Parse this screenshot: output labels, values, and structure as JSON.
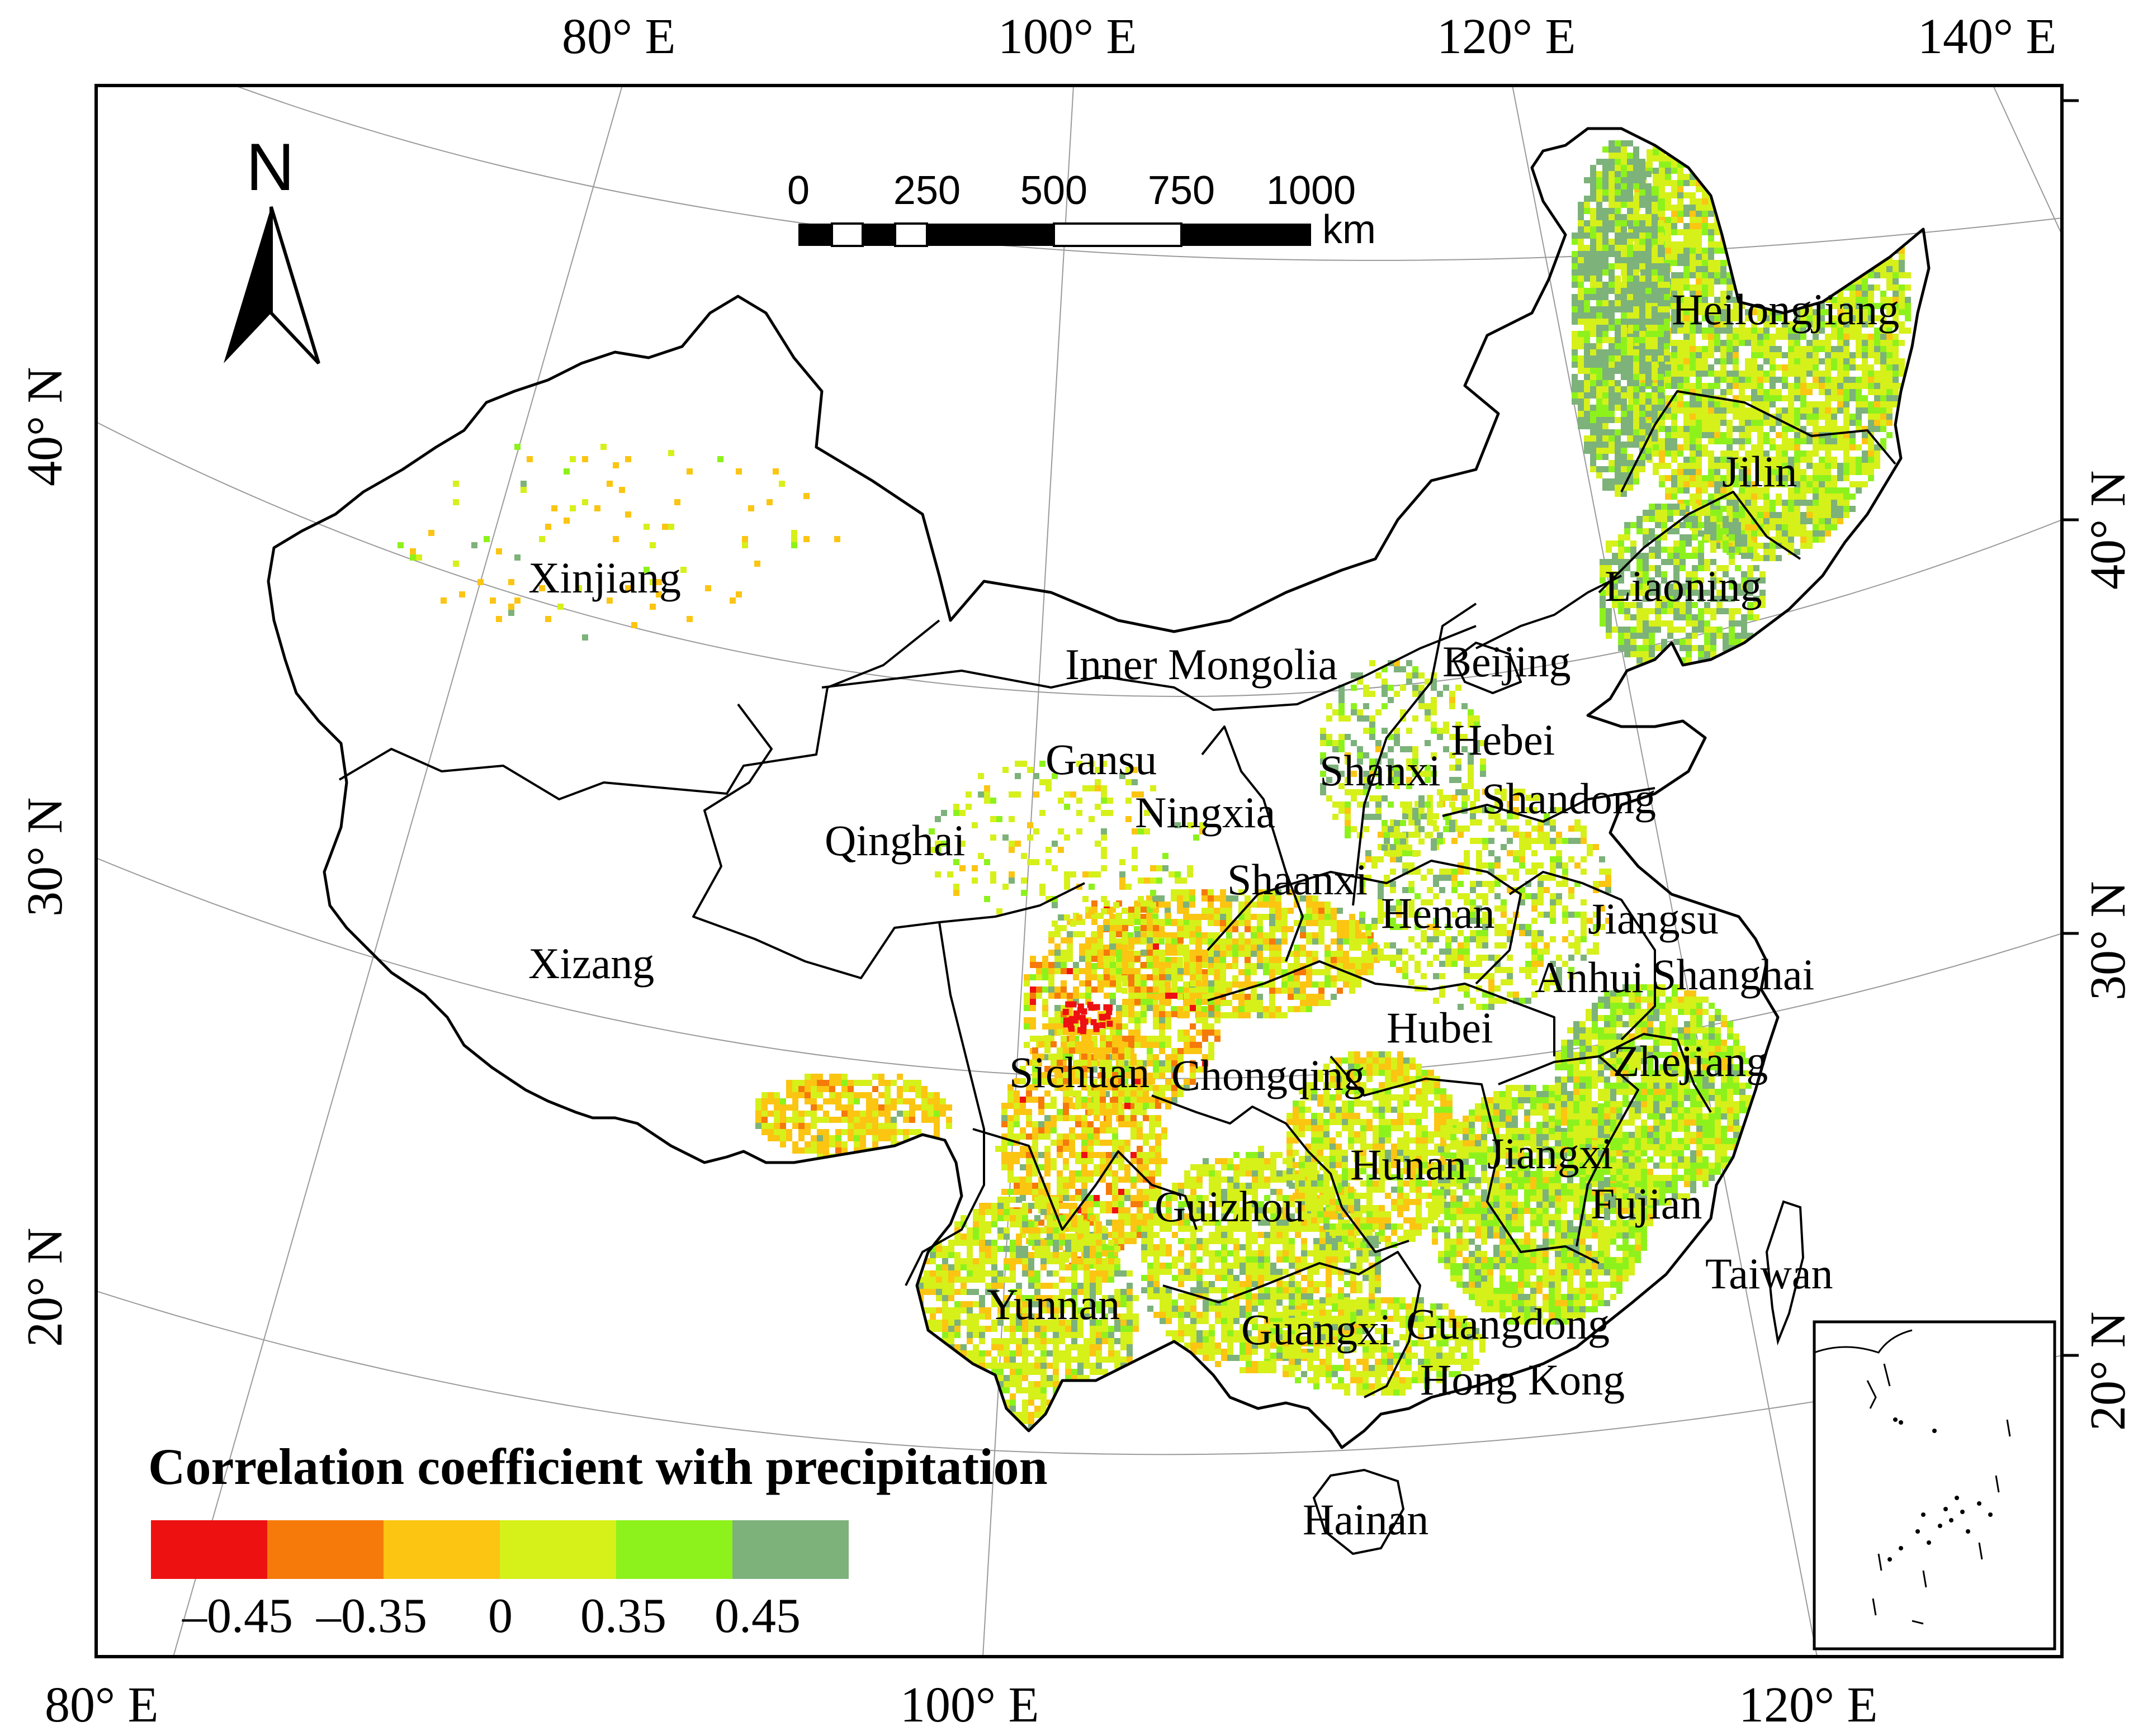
{
  "top_longitude_labels": [
    "80° E",
    "100° E",
    "120° E",
    "140° E"
  ],
  "bottom_longitude_labels": [
    "80° E",
    "100° E",
    "120° E"
  ],
  "left_latitude_labels": [
    "40° N",
    "30° N",
    "20° N"
  ],
  "right_latitude_labels": [
    "40° N",
    "30° N",
    "20° N"
  ],
  "north_arrow": {
    "letter": "N",
    "icon": "north-arrow-icon"
  },
  "scale_bar": {
    "ticks": [
      "0",
      "250",
      "500",
      "750",
      "1000"
    ],
    "unit": "km"
  },
  "provinces": [
    "Heilongjiang",
    "Jilin",
    "Liaoning",
    "Beijing",
    "Hebei",
    "Shandong",
    "Inner Mongolia",
    "Xinjiang",
    "Gansu",
    "Ningxia",
    "Shanxi",
    "Qinghai",
    "Shaanxi",
    "Henan",
    "Jiangsu",
    "Anhui",
    "Shanghai",
    "Xizang",
    "Hubei",
    "Sichuan",
    "Chongqing",
    "Zhejiang",
    "Hunan",
    "Jiangxi",
    "Fujian",
    "Guizhou",
    "Taiwan",
    "Yunnan",
    "Guangxi",
    "Guangdong",
    "Hong Kong",
    "Hainan"
  ],
  "legend": {
    "title": "Correlation coefficient with precipitation",
    "colors": [
      "#ee1111",
      "#f57a0a",
      "#fbc512",
      "#d6f01a",
      "#8df21c",
      "#7db27a"
    ],
    "tick_labels": [
      "–0.45",
      "–0.35",
      "0",
      "0.35",
      "0.45"
    ]
  },
  "colors": {
    "frame": "#000000",
    "graticule": "#9a9a9a",
    "boundary": "#000000"
  }
}
